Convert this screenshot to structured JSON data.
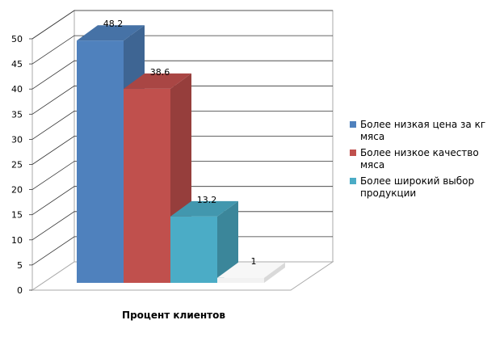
{
  "chart_data": {
    "type": "bar",
    "title": "",
    "xlabel": "Процент клиентов",
    "ylabel": "",
    "ylim": [
      0,
      50
    ],
    "yticks": [
      0,
      5,
      10,
      15,
      20,
      25,
      30,
      35,
      40,
      45,
      50
    ],
    "grid": true,
    "legend_position": "right",
    "series": [
      {
        "name": "Более низкая цена за кг мяса",
        "value": 48.2,
        "label": "48.2",
        "color": "#4f81bd"
      },
      {
        "name": "Более низкое качество мяса",
        "value": 38.6,
        "label": "38.6",
        "color": "#c0504d"
      },
      {
        "name": "Более широкий выбор продукции",
        "value": 13.2,
        "label": "13.2",
        "color": "#4bacc6"
      },
      {
        "name": "",
        "value": 1,
        "label": "1",
        "color": "#f2f2f2"
      }
    ],
    "legend": [
      {
        "line1": "Более низкая цена за кг",
        "line2": "мяса",
        "color": "#4f81bd"
      },
      {
        "line1": "Более низкое качество",
        "line2": "мяса",
        "color": "#c0504d"
      },
      {
        "line1": "Более широкий выбор",
        "line2": "продукции",
        "color": "#4bacc6"
      }
    ]
  }
}
